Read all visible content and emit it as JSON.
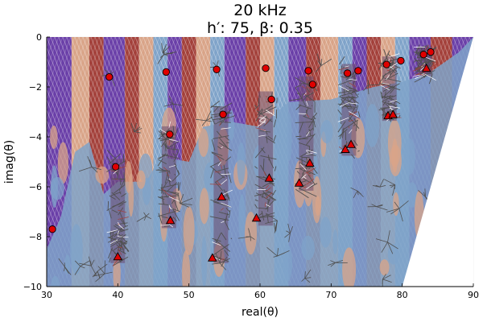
{
  "chart_data": {
    "type": "scatter",
    "title": "20 kHz",
    "subtitle": "h′: 75, β: 0.35",
    "xlabel": "real(θ)",
    "ylabel": "imag(θ)",
    "xlim": [
      30,
      90
    ],
    "ylim": [
      -10,
      0
    ],
    "xticks": [
      30,
      40,
      50,
      60,
      70,
      80,
      90
    ],
    "yticks": [
      0,
      -2,
      -4,
      -6,
      -8,
      -10
    ],
    "xtick_labels": [
      "30",
      "40",
      "50",
      "60",
      "70",
      "80",
      "90"
    ],
    "ytick_labels": [
      "0",
      "−2",
      "−4",
      "−6",
      "−8",
      "−10"
    ],
    "grid": true,
    "legend": "none",
    "colors": {
      "blue": "#7fa3c9",
      "tan": "#d9a488",
      "red_band": "#a3403a",
      "purple": "#6a3fa8",
      "mesh": "#505050",
      "marker": "#e00000"
    },
    "background_bands": [
      {
        "x0": 30,
        "x1": 33.5,
        "color": "purple"
      },
      {
        "x0": 33.5,
        "x1": 36,
        "color": "tan"
      },
      {
        "x0": 36,
        "x1": 38,
        "color": "red_band"
      },
      {
        "x0": 38,
        "x1": 41,
        "color": "purple"
      },
      {
        "x0": 41,
        "x1": 43,
        "color": "red_band"
      },
      {
        "x0": 43,
        "x1": 45,
        "color": "tan"
      },
      {
        "x0": 45,
        "x1": 47,
        "color": "blue"
      },
      {
        "x0": 47,
        "x1": 49,
        "color": "purple"
      },
      {
        "x0": 49,
        "x1": 51,
        "color": "red_band"
      },
      {
        "x0": 51,
        "x1": 53,
        "color": "tan"
      },
      {
        "x0": 53,
        "x1": 55,
        "color": "blue"
      },
      {
        "x0": 55,
        "x1": 58,
        "color": "purple"
      },
      {
        "x0": 58,
        "x1": 60,
        "color": "red_band"
      },
      {
        "x0": 60,
        "x1": 62,
        "color": "tan"
      },
      {
        "x0": 62,
        "x1": 64,
        "color": "blue"
      },
      {
        "x0": 64,
        "x1": 66.5,
        "color": "purple"
      },
      {
        "x0": 66.5,
        "x1": 68.5,
        "color": "red_band"
      },
      {
        "x0": 68.5,
        "x1": 71,
        "color": "tan"
      },
      {
        "x0": 71,
        "x1": 73,
        "color": "blue"
      },
      {
        "x0": 73,
        "x1": 75,
        "color": "purple"
      },
      {
        "x0": 75,
        "x1": 77,
        "color": "red_band"
      },
      {
        "x0": 77,
        "x1": 79,
        "color": "tan"
      },
      {
        "x0": 79,
        "x1": 81,
        "color": "blue"
      },
      {
        "x0": 81,
        "x1": 84,
        "color": "purple"
      },
      {
        "x0": 84,
        "x1": 87,
        "color": "red_band"
      },
      {
        "x0": 87,
        "x1": 90,
        "color": "purple"
      }
    ],
    "lower_left_region": {
      "color": "blue",
      "points": [
        [
          30,
          -8.5
        ],
        [
          32,
          -7.2
        ],
        [
          34,
          -4.6
        ],
        [
          36,
          -4.2
        ],
        [
          38,
          -6.3
        ],
        [
          40,
          -5.8
        ],
        [
          44,
          -5.8
        ],
        [
          46,
          -4.8
        ],
        [
          50,
          -5
        ],
        [
          52,
          -3.6
        ],
        [
          56,
          -3.4
        ],
        [
          60,
          -3.6
        ],
        [
          64,
          -2.6
        ],
        [
          70,
          -2.5
        ],
        [
          76,
          -2
        ],
        [
          80,
          -1.8
        ],
        [
          84,
          -1.4
        ],
        [
          88,
          -0.6
        ],
        [
          90,
          0
        ],
        [
          90,
          -10
        ],
        [
          30,
          -10
        ]
      ]
    },
    "background_cutoff": [
      [
        90,
        0
      ],
      [
        80,
        -10
      ]
    ],
    "vertical_clusters": [
      {
        "x": 40,
        "y_top": -5.2,
        "y_bottom": -8.8
      },
      {
        "x": 47.2,
        "y_top": -3.9,
        "y_bottom": -7.4
      },
      {
        "x": 54.5,
        "y_top": -3.1,
        "y_bottom": -8.8
      },
      {
        "x": 60.8,
        "y_top": -2.5,
        "y_bottom": -7.3
      },
      {
        "x": 66.5,
        "y_top": -1.9,
        "y_bottom": -5.9
      },
      {
        "x": 72.5,
        "y_top": -1.4,
        "y_bottom": -4.5
      },
      {
        "x": 78.2,
        "y_top": -1.1,
        "y_bottom": -3.1
      },
      {
        "x": 83.2,
        "y_top": -0.7,
        "y_bottom": -1.3
      }
    ],
    "series": [
      {
        "marker": "circle",
        "points": [
          {
            "x": 30.8,
            "y": -7.7
          },
          {
            "x": 38.8,
            "y": -1.6
          },
          {
            "x": 39.7,
            "y": -5.2
          },
          {
            "x": 46.8,
            "y": -1.4
          },
          {
            "x": 47.3,
            "y": -3.9
          },
          {
            "x": 53.9,
            "y": -1.3
          },
          {
            "x": 54.8,
            "y": -3.1
          },
          {
            "x": 60.8,
            "y": -1.25
          },
          {
            "x": 61.6,
            "y": -2.5
          },
          {
            "x": 66.8,
            "y": -1.35
          },
          {
            "x": 67.4,
            "y": -1.9
          },
          {
            "x": 72.3,
            "y": -1.45
          },
          {
            "x": 73.8,
            "y": -1.35
          },
          {
            "x": 77.8,
            "y": -1.1
          },
          {
            "x": 79.8,
            "y": -0.95
          },
          {
            "x": 83.0,
            "y": -0.7
          },
          {
            "x": 84.0,
            "y": -0.6
          }
        ]
      },
      {
        "marker": "triangle",
        "points": [
          {
            "x": 40.0,
            "y": -8.8
          },
          {
            "x": 47.4,
            "y": -7.35
          },
          {
            "x": 53.3,
            "y": -8.85
          },
          {
            "x": 59.5,
            "y": -7.25
          },
          {
            "x": 54.6,
            "y": -6.4
          },
          {
            "x": 61.3,
            "y": -5.65
          },
          {
            "x": 65.5,
            "y": -5.85
          },
          {
            "x": 67.0,
            "y": -5.05
          },
          {
            "x": 72.0,
            "y": -4.5
          },
          {
            "x": 72.8,
            "y": -4.3
          },
          {
            "x": 78.0,
            "y": -3.15
          },
          {
            "x": 78.7,
            "y": -3.1
          },
          {
            "x": 83.4,
            "y": -1.25
          }
        ]
      }
    ]
  }
}
